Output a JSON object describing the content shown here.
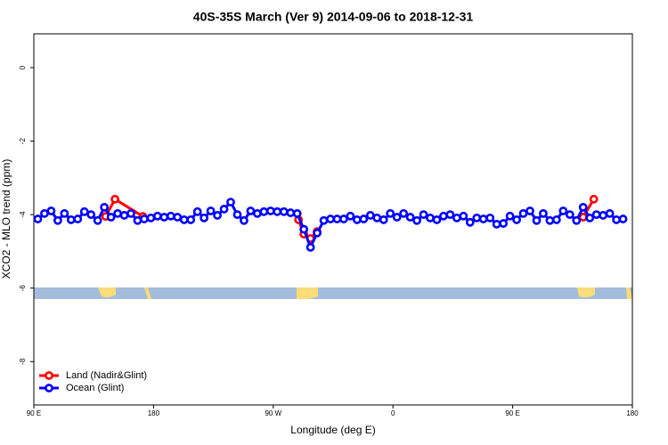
{
  "chart_data": {
    "type": "line",
    "title": "40S-35S March (Ver 9)   2014-09-06 to 2018-12-31",
    "xlabel": "Longitude (deg E)",
    "ylabel": "XCO2 - MLO trend (ppm)",
    "xlim": [
      90,
      540
    ],
    "ylim": [
      -9.18,
      0.92
    ],
    "xticks": [
      {
        "value": 90,
        "label": "90 E"
      },
      180,
      {
        "value": 270,
        "label": "90 W"
      },
      {
        "value": 360,
        "label": "0"
      },
      {
        "value": 450,
        "label": "90 E"
      },
      {
        "value": 540,
        "label": "180"
      }
    ],
    "yticks": [
      -8,
      -6,
      -4,
      -2,
      0
    ],
    "legend": "bottom-left",
    "series": [
      {
        "name": "Land (Nadir&Glint)",
        "color": "#ff0000",
        "x": [
          144,
          151,
          172,
          230,
          289,
          293,
          298,
          303,
          400,
          503,
          511
        ],
        "values": [
          -4.05,
          -3.58,
          -4.05,
          null,
          -4.14,
          -4.53,
          -4.65,
          -4.46,
          null,
          -4.07,
          -3.58
        ]
      },
      {
        "name": "Ocean (Glint)",
        "color": "#0000ff",
        "x": [
          93,
          98,
          103,
          108,
          113,
          118,
          123,
          128,
          133,
          138,
          143,
          148,
          153,
          158,
          163,
          168,
          173,
          178,
          183,
          188,
          193,
          198,
          203,
          208,
          213,
          218,
          223,
          228,
          233,
          238,
          243,
          248,
          253,
          258,
          263,
          268,
          273,
          278,
          283,
          288,
          293,
          298,
          303,
          308,
          313,
          318,
          323,
          328,
          333,
          338,
          343,
          348,
          353,
          358,
          363,
          368,
          373,
          378,
          383,
          388,
          393,
          398,
          403,
          408,
          413,
          418,
          423,
          428,
          433,
          438,
          443,
          448,
          453,
          458,
          463,
          468,
          473,
          478,
          483,
          488,
          493,
          498,
          503,
          508,
          513,
          518,
          523,
          528,
          533
        ],
        "values": [
          -4.12,
          -3.97,
          -3.9,
          -4.16,
          -3.97,
          -4.14,
          -4.12,
          -3.92,
          -4.0,
          -4.16,
          -3.8,
          -4.07,
          -3.97,
          -4.02,
          -3.97,
          -4.16,
          -4.12,
          -4.09,
          -4.04,
          -4.07,
          -4.04,
          -4.07,
          -4.14,
          -4.14,
          -3.92,
          -4.09,
          -3.9,
          -4.02,
          -3.85,
          -3.66,
          -4.0,
          -4.16,
          -3.9,
          -3.97,
          -3.92,
          -3.9,
          -3.92,
          -3.92,
          -3.95,
          -3.97,
          -4.4,
          -4.89,
          -4.5,
          -4.16,
          -4.12,
          -4.12,
          -4.12,
          -4.04,
          -4.14,
          -4.12,
          -4.02,
          -4.09,
          -4.14,
          -3.97,
          -4.07,
          -3.97,
          -4.07,
          -4.16,
          -4.0,
          -4.09,
          -4.14,
          -4.04,
          -4.0,
          -4.09,
          -4.04,
          -4.21,
          -4.09,
          -4.12,
          -4.09,
          -4.26,
          -4.24,
          -4.04,
          -4.14,
          -3.97,
          -3.9,
          -4.16,
          -3.97,
          -4.16,
          -4.14,
          -3.9,
          -4.0,
          -4.16,
          -3.8,
          -4.09,
          -4.0,
          -4.02,
          -3.97,
          -4.14,
          -4.12
        ]
      }
    ]
  }
}
